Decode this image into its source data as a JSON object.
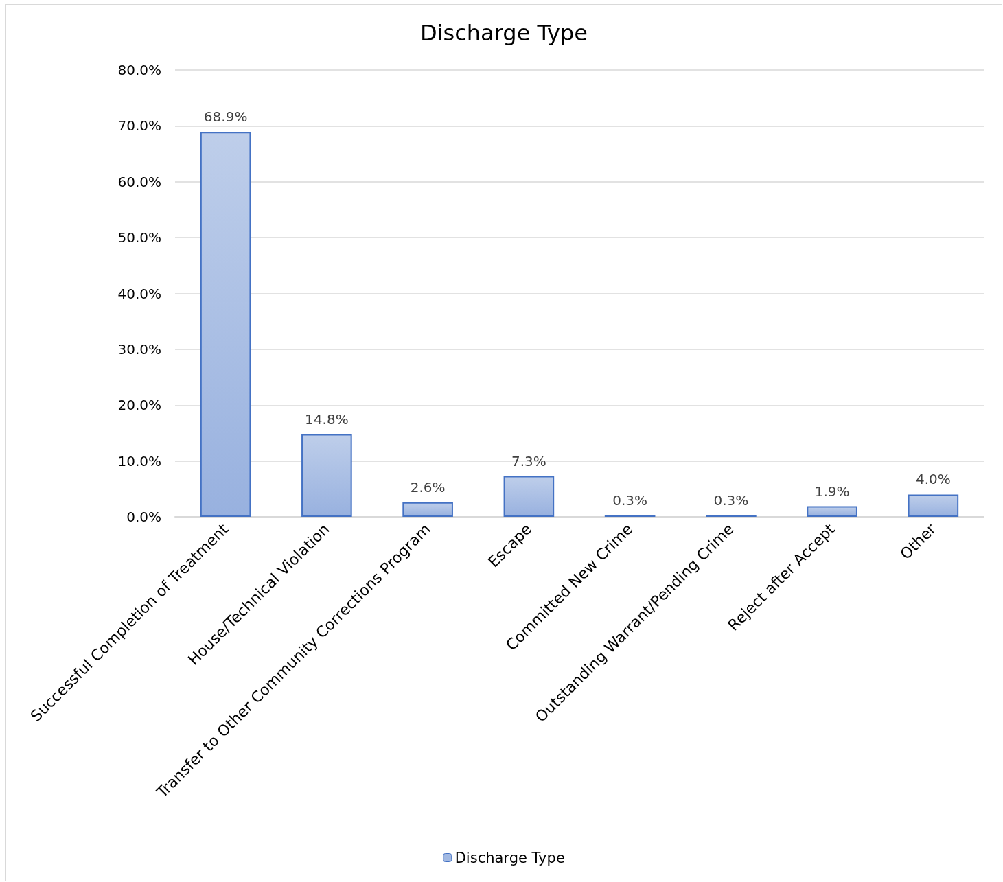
{
  "chart_data": {
    "type": "bar",
    "title": "Discharge Type",
    "categories": [
      "Successful Completion of Treatment",
      "House/Technical Violation",
      "Transfer to Other Community Corrections Program",
      "Escape",
      "Committed New Crime",
      "Outstanding Warrant/Pending Crime",
      "Reject after Accept",
      "Other"
    ],
    "series": [
      {
        "name": "Discharge Type",
        "color": "#4472c4",
        "values": [
          68.9,
          14.8,
          2.6,
          7.3,
          0.3,
          0.3,
          1.9,
          4.0
        ]
      }
    ],
    "value_labels": [
      "68.9%",
      "14.8%",
      "2.6%",
      "7.3%",
      "0.3%",
      "0.3%",
      "1.9%",
      "4.0%"
    ],
    "ylim": [
      0,
      80
    ],
    "yticks": [
      {
        "value": 0,
        "label": "0.0%"
      },
      {
        "value": 10,
        "label": "10.0%"
      },
      {
        "value": 20,
        "label": "20.0%"
      },
      {
        "value": 30,
        "label": "30.0%"
      },
      {
        "value": 40,
        "label": "40.0%"
      },
      {
        "value": 50,
        "label": "50.0%"
      },
      {
        "value": 60,
        "label": "60.0%"
      },
      {
        "value": 70,
        "label": "70.0%"
      },
      {
        "value": 80,
        "label": "80.0%"
      }
    ],
    "grid": "y",
    "legend": "bottom"
  }
}
